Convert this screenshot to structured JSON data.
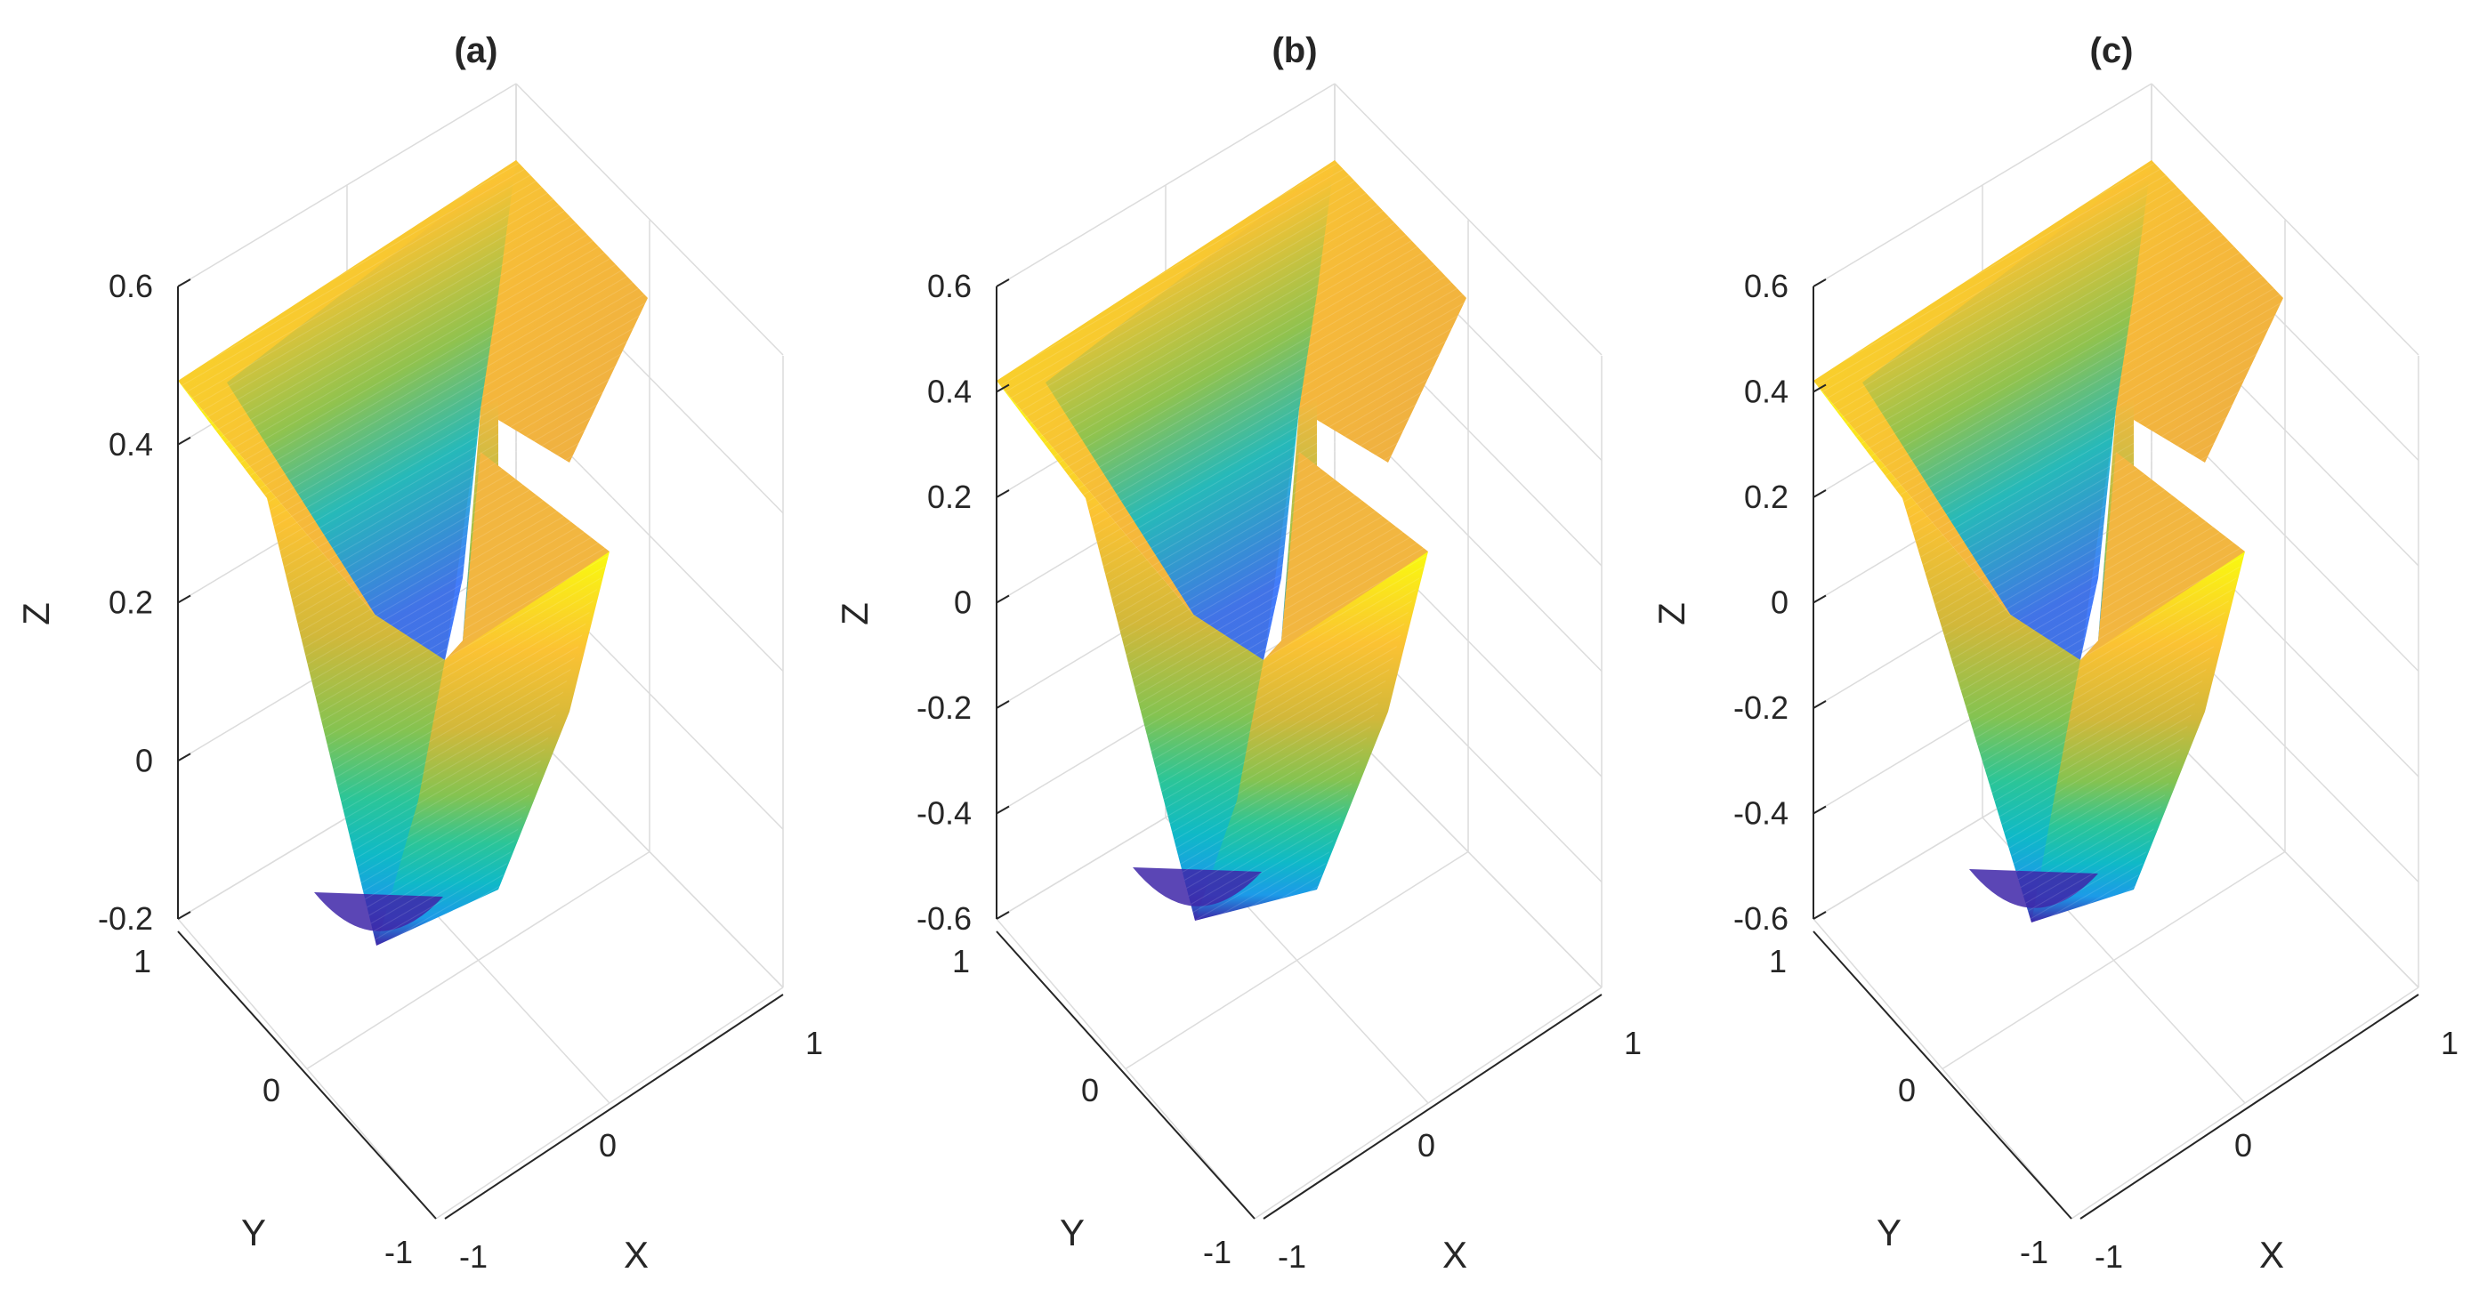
{
  "figure": {
    "description_free": true,
    "panels_count": 3
  },
  "colors": {
    "colormap": [
      "#3e26a8",
      "#2e6cf9",
      "#1c9ae8",
      "#0fb9c7",
      "#2bc598",
      "#84c351",
      "#d2b83a",
      "#fbc233",
      "#f9fb0e"
    ],
    "axis_line": "#262626",
    "grid_line": "#dcdcdc"
  },
  "chart_data": [
    {
      "type": "surface",
      "title": "(a)",
      "xlabel": "X",
      "ylabel": "Y",
      "zlabel": "Z",
      "xlim": [
        -1,
        1
      ],
      "ylim": [
        -1,
        1
      ],
      "zlim": [
        -0.2,
        0.6
      ],
      "xticks": [
        "-1",
        "0",
        "1"
      ],
      "yticks": [
        "-1",
        "0",
        "1"
      ],
      "zticks": [
        "-0.2",
        "0",
        "0.2",
        "0.4",
        "0.6"
      ],
      "domain": "L-shaped region (square [-1,1]x[-1,1] with a notch at the re-entrant corner)",
      "zmin": -0.2,
      "zmax": 0.5,
      "grid": true
    },
    {
      "type": "surface",
      "title": "(b)",
      "xlabel": "X",
      "ylabel": "Y",
      "zlabel": "Z",
      "xlim": [
        -1,
        1
      ],
      "ylim": [
        -1,
        1
      ],
      "zlim": [
        -0.6,
        0.6
      ],
      "xticks": [
        "-1",
        "0",
        "1"
      ],
      "yticks": [
        "-1",
        "0",
        "1"
      ],
      "zticks": [
        "-0.6",
        "-0.4",
        "-0.2",
        "0",
        "0.2",
        "0.4",
        "0.6"
      ],
      "domain": "L-shaped region (square [-1,1]x[-1,1] with a notch at the re-entrant corner)",
      "zmin": -0.6,
      "zmax": 0.5,
      "grid": true
    },
    {
      "type": "surface",
      "title": "(c)",
      "xlabel": "X",
      "ylabel": "Y",
      "zlabel": "Z",
      "xlim": [
        -1,
        1
      ],
      "ylim": [
        -1,
        1
      ],
      "zlim": [
        -0.6,
        0.6
      ],
      "xticks": [
        "-1",
        "0",
        "1"
      ],
      "yticks": [
        "-1",
        "0",
        "1"
      ],
      "zticks": [
        "-0.6",
        "-0.4",
        "-0.2",
        "0",
        "0.2",
        "0.4",
        "0.6"
      ],
      "domain": "L-shaped region (square [-1,1]x[-1,1] with a notch at the re-entrant corner)",
      "zmin": -0.6,
      "zmax": 0.5,
      "grid": true
    }
  ]
}
